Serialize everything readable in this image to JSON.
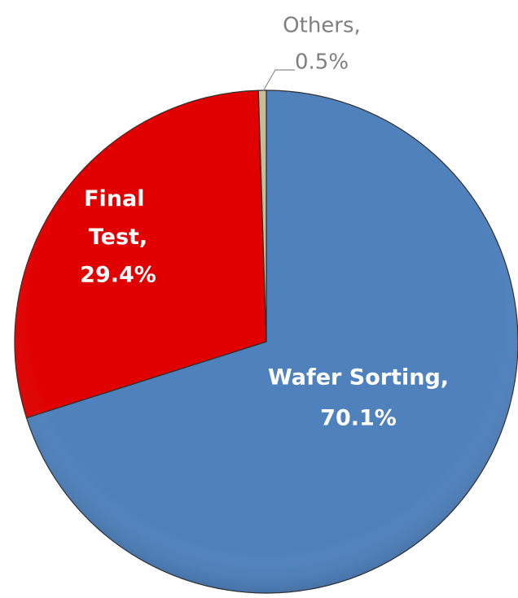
{
  "chart_data": {
    "type": "pie",
    "categories": [
      "Wafer Sorting,",
      "Final Test,",
      "Others,"
    ],
    "values": [
      70.1,
      29.4,
      0.5
    ],
    "value_labels": [
      "70.1%",
      "29.4%",
      "0.5%"
    ],
    "colors": [
      "#4f81bd",
      "#e00000",
      "#c4bd97"
    ]
  }
}
